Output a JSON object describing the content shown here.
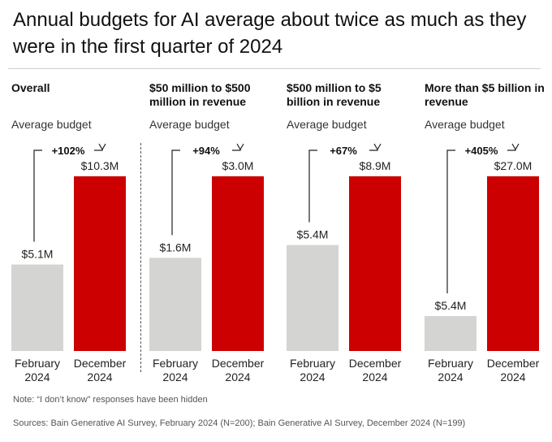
{
  "title": "Annual budgets for AI average about twice as much as they were in the first quarter of 2024",
  "note": "Note: “I don’t know” responses have been hidden",
  "source": "Sources: Bain Generative AI Survey, February 2024 (N=200); Bain Generative AI Survey, December 2024 (N=199)",
  "colors": {
    "february": "#d4d4d2",
    "december": "#cc0000",
    "arrow": "#222222"
  },
  "chart_data": [
    {
      "type": "bar",
      "title": "Overall",
      "subtitle": "Average budget",
      "categories": [
        "February 2024",
        "December 2024"
      ],
      "category_lines": [
        [
          "February",
          "2024"
        ],
        [
          "December",
          "2024"
        ]
      ],
      "values": [
        5.1,
        10.3
      ],
      "value_labels": [
        "$5.1M",
        "$10.3M"
      ],
      "change_label": "+102%",
      "ymax": 10.3
    },
    {
      "type": "bar",
      "title": "$50 million to $500 million in revenue",
      "subtitle": "Average budget",
      "categories": [
        "February 2024",
        "December 2024"
      ],
      "category_lines": [
        [
          "February",
          "2024"
        ],
        [
          "December",
          "2024"
        ]
      ],
      "values": [
        1.6,
        3.0
      ],
      "value_labels": [
        "$1.6M",
        "$3.0M"
      ],
      "change_label": "+94%",
      "ymax": 3.0
    },
    {
      "type": "bar",
      "title": "$500 million to $5 billion in revenue",
      "subtitle": "Average budget",
      "categories": [
        "February 2024",
        "December 2024"
      ],
      "category_lines": [
        [
          "February",
          "2024"
        ],
        [
          "December",
          "2024"
        ]
      ],
      "values": [
        5.4,
        8.9
      ],
      "value_labels": [
        "$5.4M",
        "$8.9M"
      ],
      "change_label": "+67%",
      "ymax": 8.9
    },
    {
      "type": "bar",
      "title": "More than $5 billion in revenue",
      "subtitle": "Average budget",
      "categories": [
        "February 2024",
        "December 2024"
      ],
      "category_lines": [
        [
          "February",
          "2024"
        ],
        [
          "December",
          "2024"
        ]
      ],
      "values": [
        5.4,
        27.0
      ],
      "value_labels": [
        "$5.4M",
        "$27.0M"
      ],
      "change_label": "+405%",
      "ymax": 27.0
    }
  ]
}
